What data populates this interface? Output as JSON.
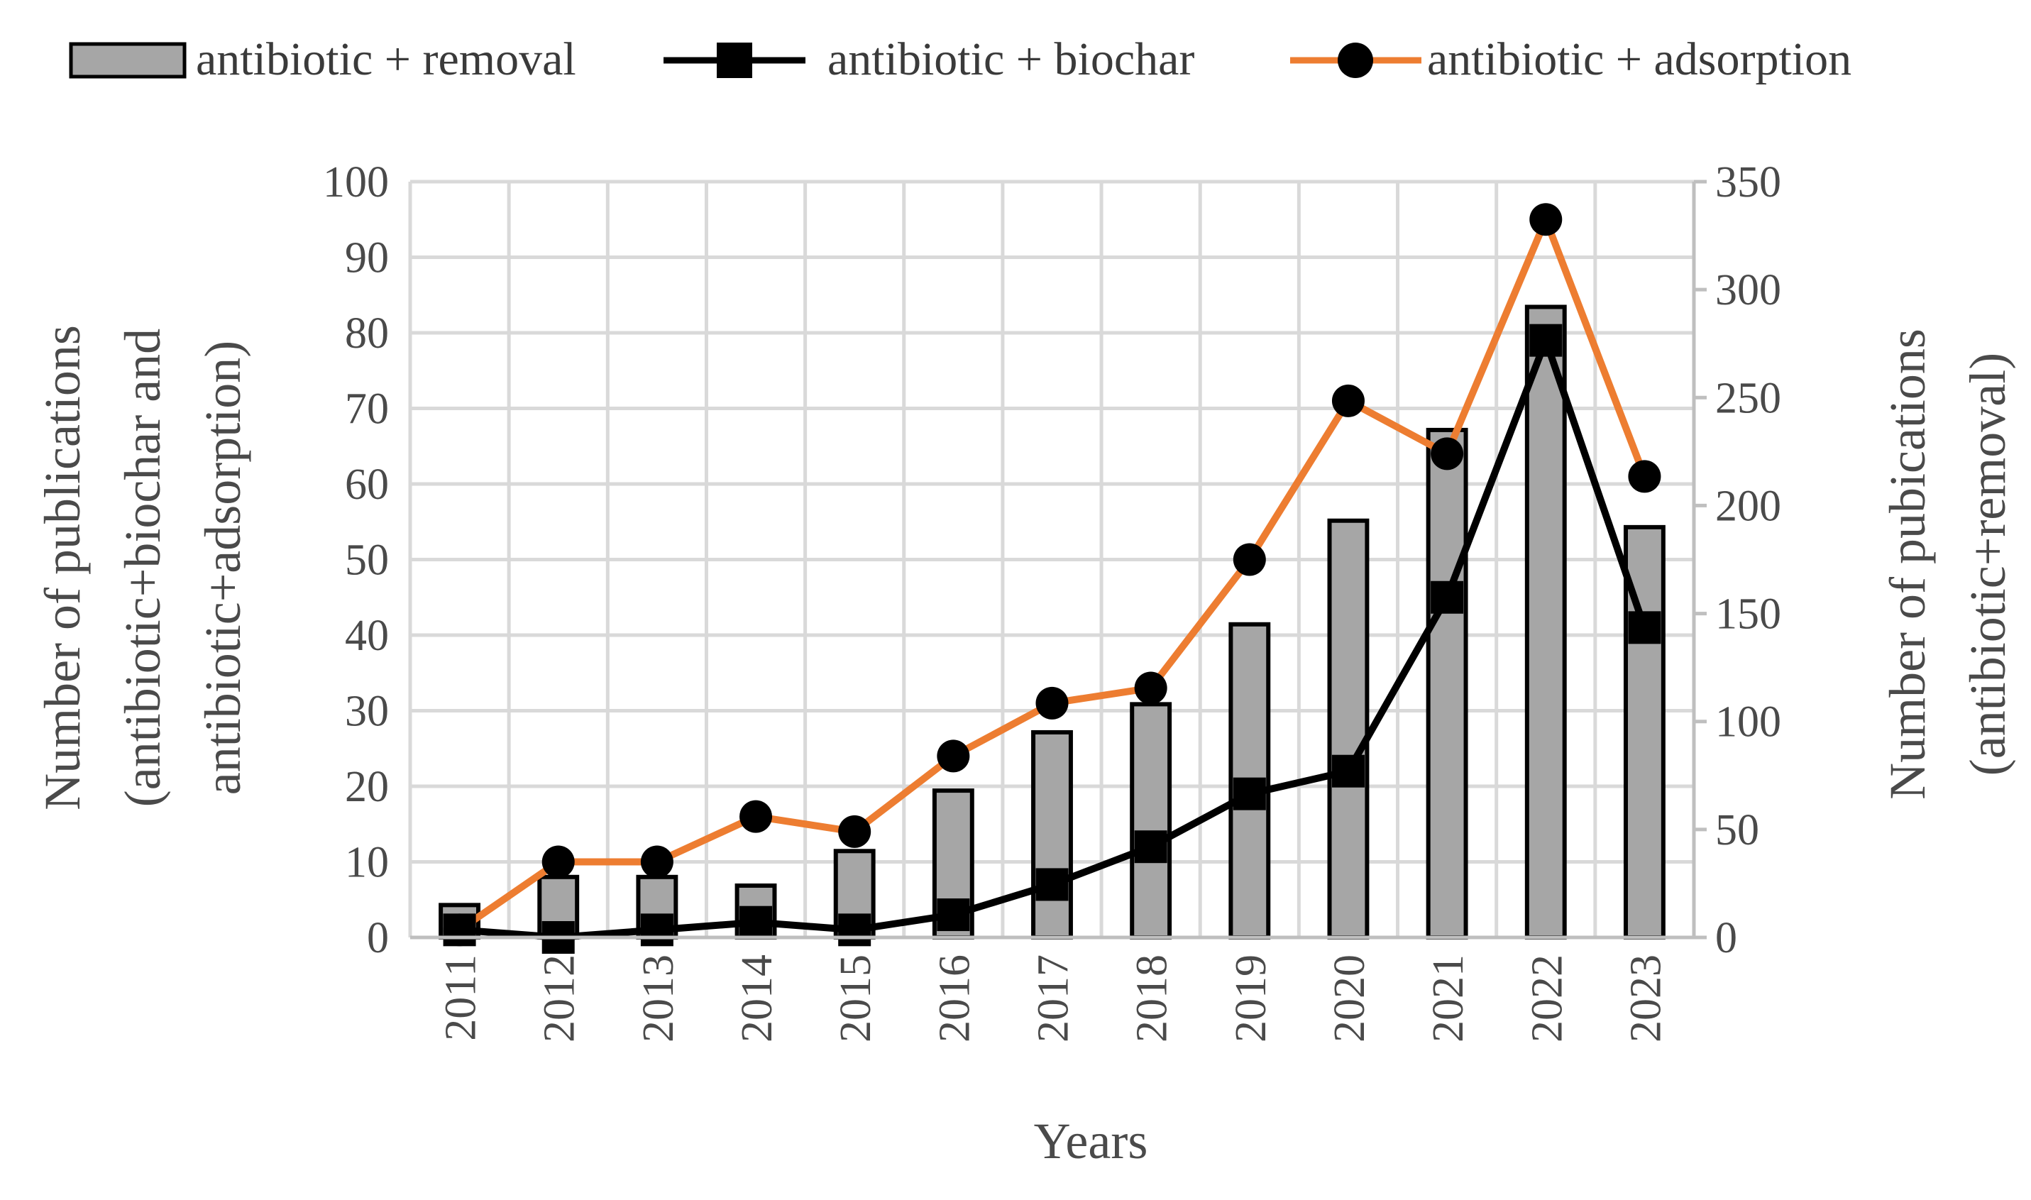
{
  "chart_data": {
    "type": "bar",
    "title": "",
    "x_categories": [
      "2011",
      "2012",
      "2013",
      "2014",
      "2015",
      "2016",
      "2017",
      "2018",
      "2019",
      "2020",
      "2021",
      "2022",
      "2023"
    ],
    "xlabel": "Years",
    "ylabel_left_lines": [
      "Number of publications",
      "(antibiotic+biochar and",
      "antibiotic+adsorption)"
    ],
    "ylabel_right_lines": [
      "Number of pubications",
      "(antibiotic+removal)"
    ],
    "y_left_ticks": [
      "0",
      "10",
      "20",
      "30",
      "40",
      "50",
      "60",
      "70",
      "80",
      "90",
      "100"
    ],
    "y_right_ticks": [
      "0",
      "50",
      "100",
      "150",
      "200",
      "250",
      "300",
      "350"
    ],
    "ylim_left": [
      0,
      100
    ],
    "ylim_right": [
      0,
      350
    ],
    "grid": true,
    "legend_position": "top",
    "series": [
      {
        "name": "antibiotic + removal",
        "type": "bar",
        "axis": "right",
        "color": "#a6a6a6",
        "edge_color": "#000000",
        "values": [
          15,
          28,
          28,
          24,
          40,
          68,
          95,
          108,
          145,
          193,
          235,
          292,
          190
        ]
      },
      {
        "name": "antibiotic + biochar",
        "type": "line",
        "axis": "left",
        "color": "#000000",
        "marker": "square",
        "values": [
          1,
          0,
          1,
          2,
          1,
          3,
          7,
          12,
          19,
          22,
          45,
          79,
          41
        ]
      },
      {
        "name": "antibiotic + adsorption",
        "type": "line",
        "axis": "left",
        "color": "#ed7d31",
        "marker": "circle",
        "values": [
          1,
          10,
          10,
          16,
          14,
          24,
          31,
          33,
          50,
          71,
          64,
          95,
          61
        ]
      }
    ]
  }
}
